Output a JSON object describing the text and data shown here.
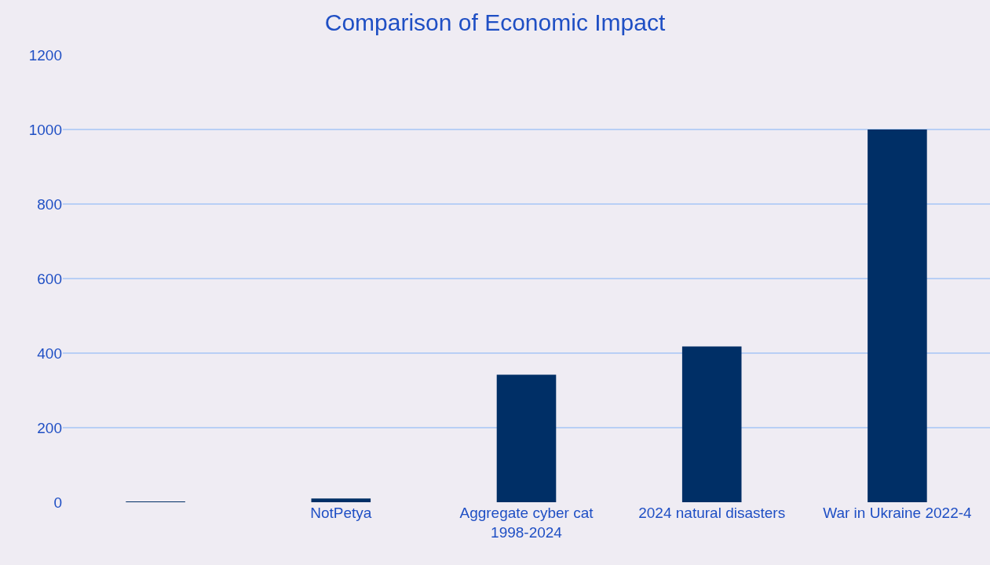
{
  "chart_data": {
    "type": "bar",
    "title": "Comparison of Economic Impact",
    "categories": [
      null,
      "NotPetya",
      "Aggregate cyber cat 1998-2024",
      "2024 natural disasters",
      "War in Ukraine 2022-4"
    ],
    "values": [
      1,
      10,
      342,
      418,
      1000
    ],
    "color": "#002f66",
    "ylim": [
      0,
      1200
    ],
    "yticks": [
      0,
      200,
      400,
      600,
      800,
      1000,
      1200
    ],
    "grid": "y"
  }
}
